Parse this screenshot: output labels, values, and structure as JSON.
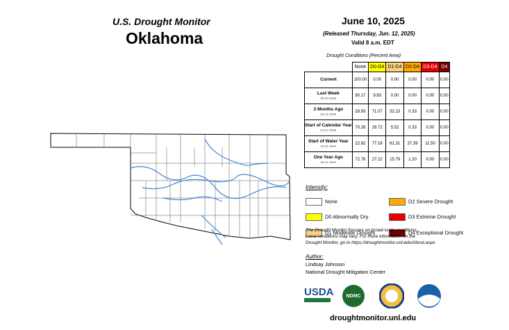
{
  "header": {
    "title": "U.S. Drought Monitor",
    "state": "Oklahoma",
    "date": "June 10, 2025",
    "released": "(Released Thursday, Jun. 12, 2025)",
    "valid": "Valid 8 a.m. EDT"
  },
  "table": {
    "caption": "Drought Conditions (Percent Area)",
    "columns": [
      {
        "label": "None",
        "color": "#ffffff",
        "text": "#000"
      },
      {
        "label": "D0-D4",
        "color": "#ffff00",
        "text": "#000"
      },
      {
        "label": "D1-D4",
        "color": "#fcd37f",
        "text": "#000"
      },
      {
        "label": "D2-D4",
        "color": "#ffaa00",
        "text": "#000"
      },
      {
        "label": "D3-D4",
        "color": "#e60000",
        "text": "#fff"
      },
      {
        "label": "D4",
        "color": "#730000",
        "text": "#fff"
      }
    ],
    "rows": [
      {
        "label": "Current",
        "values": [
          "100.00",
          "0.00",
          "0.00",
          "0.00",
          "0.00",
          "0.00"
        ]
      },
      {
        "label": "Last Week",
        "date": "06-03-2025",
        "values": [
          "90.17",
          "9.83",
          "0.00",
          "0.00",
          "0.00",
          "0.00"
        ]
      },
      {
        "label": "3 Months Ago",
        "date": "03-11-2025",
        "values": [
          "28.93",
          "71.07",
          "32.13",
          "0.33",
          "0.00",
          "0.00"
        ]
      },
      {
        "label": "Start of Calendar Year",
        "date": "01-07-2025",
        "values": [
          "70.28",
          "29.72",
          "5.52",
          "0.33",
          "0.00",
          "0.00"
        ]
      },
      {
        "label": "Start of Water Year",
        "date": "10-01-2024",
        "values": [
          "22.82",
          "77.18",
          "61.31",
          "37.39",
          "11.50",
          "0.00"
        ]
      },
      {
        "label": "One Year Ago",
        "date": "06-11-2024",
        "values": [
          "72.78",
          "27.22",
          "15.79",
          "1.20",
          "0.00",
          "0.00"
        ]
      }
    ]
  },
  "legend": {
    "title": "Intensity:",
    "items": [
      {
        "label": "None",
        "color": "#ffffff"
      },
      {
        "label": "D2 Severe Drought",
        "color": "#ffaa00"
      },
      {
        "label": "D0 Abnormally Dry",
        "color": "#ffff00"
      },
      {
        "label": "D3 Extreme Drought",
        "color": "#e60000"
      },
      {
        "label": "D1 Moderate Drought",
        "color": "#fcd37f"
      },
      {
        "label": "D4 Exceptional Drought",
        "color": "#730000"
      }
    ]
  },
  "note": [
    "The Drought Monitor focuses on broad-scale conditions.",
    "Local conditions may vary. For more information on the",
    "Drought Monitor, go to https://droughtmonitor.unl.edu/About.aspx"
  ],
  "author": {
    "title": "Author:",
    "name": "Lindsay Johnson",
    "org": "National Drought Mitigation Center"
  },
  "logos": [
    "USDA",
    "NDMC"
  ],
  "footer": "droughtmonitor.unl.edu"
}
